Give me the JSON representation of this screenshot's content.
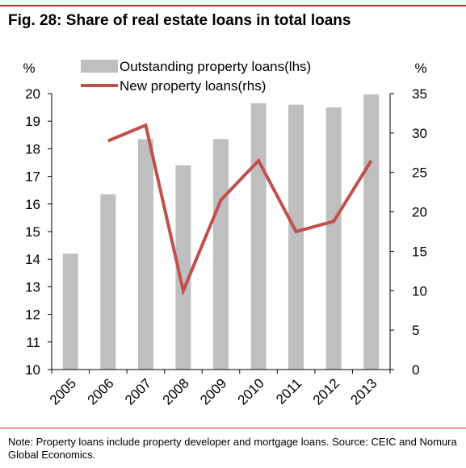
{
  "figure": {
    "title": "Fig. 28: Share of real estate loans in total loans",
    "note": "Note: Property loans include property developer and mortgage loans. Source: CEIC and Nomura Global Economics."
  },
  "chart_data": {
    "type": "bar",
    "categories": [
      "2005",
      "2006",
      "2007",
      "2008",
      "2009",
      "2010",
      "2011",
      "2012",
      "2013"
    ],
    "series": [
      {
        "name": "Outstanding property loans(lhs)",
        "type": "bar",
        "axis": "left",
        "color": "#bfbfbf",
        "values": [
          14.2,
          16.35,
          18.35,
          17.4,
          18.35,
          19.65,
          19.6,
          19.5,
          19.97
        ]
      },
      {
        "name": "New property loans(rhs)",
        "type": "line",
        "axis": "right",
        "color": "#c0504d",
        "values": [
          null,
          29,
          31,
          10,
          21.5,
          26.5,
          17.5,
          18.8,
          26.5
        ]
      }
    ],
    "y_left": {
      "unit_label": "%",
      "ylim": [
        10,
        20
      ],
      "ticks": [
        10,
        11,
        12,
        13,
        14,
        15,
        16,
        17,
        18,
        19,
        20
      ]
    },
    "y_right": {
      "unit_label": "%",
      "ylim": [
        0,
        35
      ],
      "ticks": [
        0,
        5,
        10,
        15,
        20,
        25,
        30,
        35
      ]
    },
    "xlabel": "",
    "grid": false,
    "legend_position": "top-center"
  }
}
